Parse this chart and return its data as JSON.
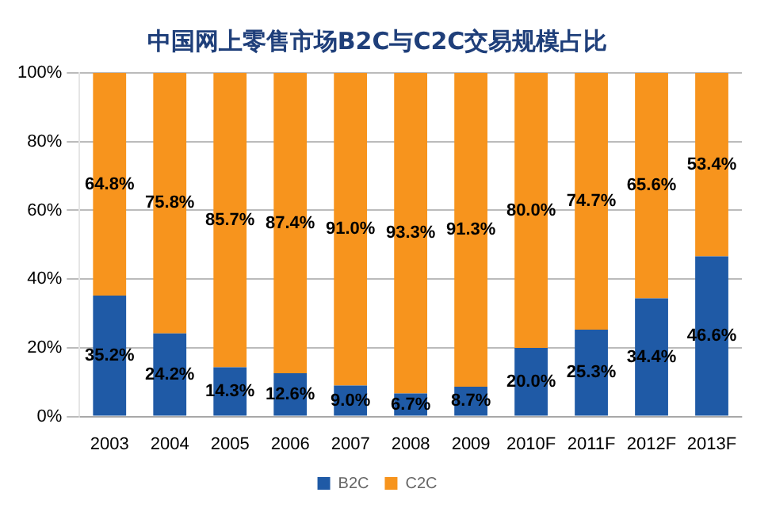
{
  "chart_data": {
    "type": "bar",
    "title": "中国网上零售市场B2C与C2C交易规模占比",
    "categories": [
      "2003",
      "2004",
      "2005",
      "2006",
      "2007",
      "2008",
      "2009",
      "2010F",
      "2011F",
      "2012F",
      "2013F"
    ],
    "stacked": true,
    "series": [
      {
        "name": "B2C",
        "color": "#1f5aa6",
        "values": [
          35.2,
          24.2,
          14.3,
          12.6,
          9.0,
          6.7,
          8.7,
          20.0,
          25.3,
          34.4,
          46.6
        ],
        "value_labels": [
          "35.2%",
          "24.2%",
          "14.3%",
          "12.6%",
          "9.0%",
          "6.7%",
          "8.7%",
          "20.0%",
          "25.3%",
          "34.4%",
          "46.6%"
        ]
      },
      {
        "name": "C2C",
        "color": "#f7941d",
        "values": [
          64.8,
          75.8,
          85.7,
          87.4,
          91.0,
          93.3,
          91.3,
          80.0,
          74.7,
          65.6,
          53.4
        ],
        "value_labels": [
          "64.8%",
          "75.8%",
          "85.7%",
          "87.4%",
          "91.0%",
          "93.3%",
          "91.3%",
          "80.0%",
          "74.7%",
          "65.6%",
          "53.4%"
        ]
      }
    ],
    "ylim": [
      0,
      100
    ],
    "yticks": [
      {
        "value": 0,
        "label": "0%"
      },
      {
        "value": 20,
        "label": "20%"
      },
      {
        "value": 40,
        "label": "40%"
      },
      {
        "value": 60,
        "label": "60%"
      },
      {
        "value": 80,
        "label": "80%"
      },
      {
        "value": 100,
        "label": "100%"
      }
    ],
    "grid": "y",
    "legend": "bottom"
  }
}
